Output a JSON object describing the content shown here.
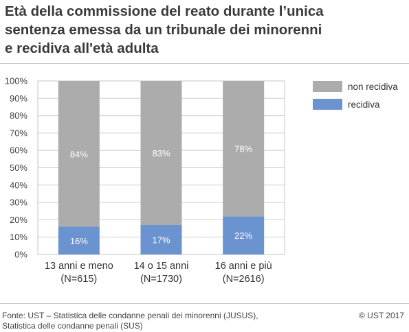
{
  "chart_data": {
    "type": "bar",
    "stacked": true,
    "title_lines": [
      "Età della commissione del reato durante l’unica",
      "sentenza emessa da un tribunale dei minorenni",
      "e recidiva all'età adulta"
    ],
    "categories": [
      [
        "13 anni e meno",
        "(N=615)"
      ],
      [
        "14 o 15 anni",
        "(N=1730)"
      ],
      [
        "16 anni e più",
        "(N=2616)"
      ]
    ],
    "series": [
      {
        "name": "recidiva",
        "values": [
          16,
          17,
          22
        ],
        "labels": [
          "16%",
          "17%",
          "22%"
        ],
        "color": "#6b93cf"
      },
      {
        "name": "non recidiva",
        "values": [
          84,
          83,
          78
        ],
        "labels": [
          "84%",
          "83%",
          "78%"
        ],
        "color": "#acacac"
      }
    ],
    "y_ticks": [
      "0%",
      "10%",
      "20%",
      "30%",
      "40%",
      "50%",
      "60%",
      "70%",
      "80%",
      "90%",
      "100%"
    ],
    "ylim": [
      0,
      100
    ],
    "grid": true,
    "legend_position": "top-right",
    "legend_order": [
      "non recidiva",
      "recidiva"
    ]
  },
  "footer": {
    "source_lines": [
      "Fonte: UST – Statistica delle condanne penali dei minorenni (JUSUS),",
      "Statistica delle condanne penali (SUS)"
    ],
    "copyright": "© UST 2017"
  }
}
